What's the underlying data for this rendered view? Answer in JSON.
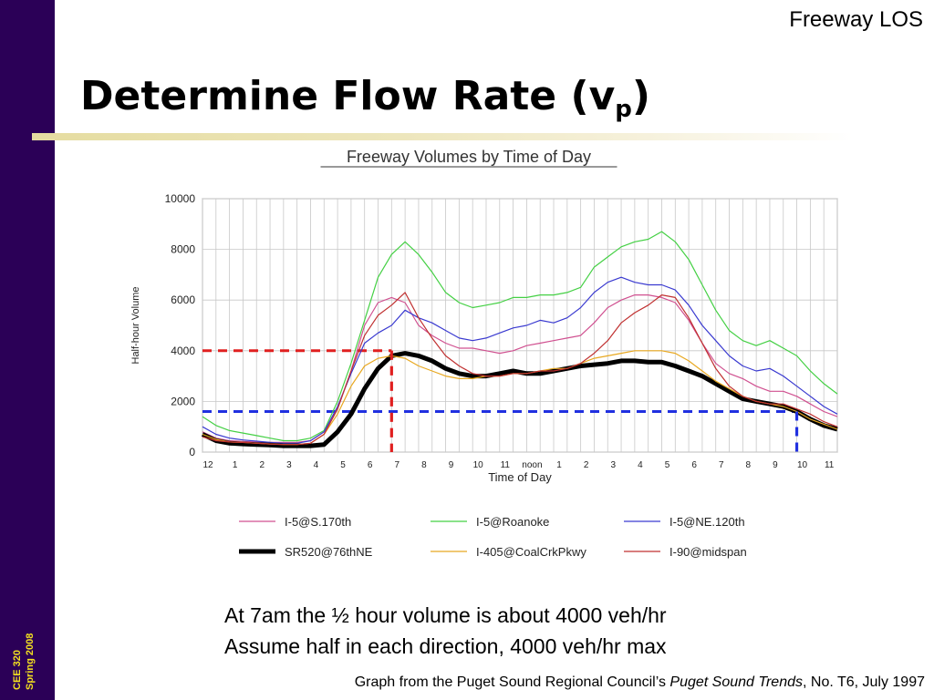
{
  "slide": {
    "section_label": "Freeway LOS",
    "title_main": "Determine Flow Rate (v",
    "title_sub": "p",
    "title_close": ")",
    "course": "CEE 320",
    "term": "Spring 2008",
    "notes": [
      "At 7am the ½ hour volume is about 4000 veh/hr",
      "Assume half in each direction, 4000 veh/hr max"
    ],
    "source": {
      "prefix": "Graph from the Puget Sound Regional Council’s ",
      "italic": "Puget Sound Trends",
      "suffix": ", No. T6, July 1997"
    }
  },
  "chart_data": {
    "type": "line",
    "title": "Freeway Volumes by Time of Day",
    "xlabel": "Time of Day",
    "ylabel": "Half-hour Volume",
    "ylim": [
      0,
      10000
    ],
    "xlim": [
      0,
      23.5
    ],
    "yticks": [
      0,
      2000,
      4000,
      6000,
      8000,
      10000
    ],
    "x_tick_labels": [
      "12",
      "1",
      "2",
      "3",
      "4",
      "5",
      "6",
      "7",
      "8",
      "9",
      "10",
      "11",
      "noon",
      "1",
      "2",
      "3",
      "4",
      "5",
      "6",
      "7",
      "8",
      "9",
      "10",
      "11"
    ],
    "grid": true,
    "legend_position": "bottom",
    "series": [
      {
        "name": "I-5@S.170th",
        "color": "#d05090",
        "width": 1.2,
        "x": [
          0,
          0.5,
          1,
          1.5,
          2,
          2.5,
          3,
          3.5,
          4,
          4.5,
          5,
          5.5,
          6,
          6.5,
          7,
          7.5,
          8,
          8.5,
          9,
          9.5,
          10,
          10.5,
          11,
          11.5,
          12,
          12.5,
          13,
          13.5,
          14,
          14.5,
          15,
          15.5,
          16,
          16.5,
          17,
          17.5,
          18,
          18.5,
          19,
          19.5,
          20,
          20.5,
          21,
          21.5,
          22,
          22.5,
          23,
          23.5
        ],
        "y": [
          800,
          550,
          450,
          420,
          400,
          380,
          380,
          380,
          450,
          800,
          1700,
          3200,
          5000,
          5900,
          6100,
          5900,
          5000,
          4600,
          4300,
          4100,
          4100,
          4000,
          3900,
          4000,
          4200,
          4300,
          4400,
          4500,
          4600,
          5100,
          5700,
          6000,
          6200,
          6200,
          6100,
          5900,
          5200,
          4300,
          3500,
          3100,
          2900,
          2600,
          2400,
          2400,
          2200,
          1900,
          1600,
          1400
        ]
      },
      {
        "name": "I-5@Roanoke",
        "color": "#44d044",
        "width": 1.2,
        "x": [
          0,
          0.5,
          1,
          1.5,
          2,
          2.5,
          3,
          3.5,
          4,
          4.5,
          5,
          5.5,
          6,
          6.5,
          7,
          7.5,
          8,
          8.5,
          9,
          9.5,
          10,
          10.5,
          11,
          11.5,
          12,
          12.5,
          13,
          13.5,
          14,
          14.5,
          15,
          15.5,
          16,
          16.5,
          17,
          17.5,
          18,
          18.5,
          19,
          19.5,
          20,
          20.5,
          21,
          21.5,
          22,
          22.5,
          23,
          23.5
        ],
        "y": [
          1400,
          1050,
          850,
          750,
          650,
          550,
          450,
          450,
          550,
          850,
          2000,
          3500,
          5200,
          6900,
          7800,
          8300,
          7800,
          7100,
          6300,
          5900,
          5700,
          5800,
          5900,
          6100,
          6100,
          6200,
          6200,
          6300,
          6500,
          7300,
          7700,
          8100,
          8300,
          8400,
          8700,
          8300,
          7600,
          6600,
          5600,
          4800,
          4400,
          4200,
          4400,
          4100,
          3800,
          3200,
          2700,
          2300
        ]
      },
      {
        "name": "I-5@NE.120th",
        "color": "#3a3ad0",
        "width": 1.2,
        "x": [
          0,
          0.5,
          1,
          1.5,
          2,
          2.5,
          3,
          3.5,
          4,
          4.5,
          5,
          5.5,
          6,
          6.5,
          7,
          7.5,
          8,
          8.5,
          9,
          9.5,
          10,
          10.5,
          11,
          11.5,
          12,
          12.5,
          13,
          13.5,
          14,
          14.5,
          15,
          15.5,
          16,
          16.5,
          17,
          17.5,
          18,
          18.5,
          19,
          19.5,
          20,
          20.5,
          21,
          21.5,
          22,
          22.5,
          23,
          23.5
        ],
        "y": [
          1000,
          700,
          550,
          480,
          430,
          380,
          350,
          350,
          450,
          800,
          1800,
          3100,
          4300,
          4700,
          5000,
          5600,
          5300,
          5100,
          4800,
          4500,
          4400,
          4500,
          4700,
          4900,
          5000,
          5200,
          5100,
          5300,
          5700,
          6300,
          6700,
          6900,
          6700,
          6600,
          6600,
          6400,
          5800,
          5000,
          4400,
          3800,
          3400,
          3200,
          3300,
          3000,
          2600,
          2200,
          1800,
          1500
        ]
      },
      {
        "name": "SR520@76thNE",
        "color": "#000000",
        "width": 5,
        "x": [
          0,
          0.5,
          1,
          1.5,
          2,
          2.5,
          3,
          3.5,
          4,
          4.5,
          5,
          5.5,
          6,
          6.5,
          7,
          7.5,
          8,
          8.5,
          9,
          9.5,
          10,
          10.5,
          11,
          11.5,
          12,
          12.5,
          13,
          13.5,
          14,
          14.5,
          15,
          15.5,
          16,
          16.5,
          17,
          17.5,
          18,
          18.5,
          19,
          19.5,
          20,
          20.5,
          21,
          21.5,
          22,
          22.5,
          23,
          23.5
        ],
        "y": [
          700,
          450,
          350,
          320,
          300,
          280,
          250,
          250,
          250,
          300,
          800,
          1500,
          2500,
          3300,
          3800,
          3900,
          3800,
          3600,
          3300,
          3100,
          3000,
          3000,
          3100,
          3200,
          3100,
          3100,
          3200,
          3300,
          3400,
          3450,
          3500,
          3600,
          3600,
          3550,
          3550,
          3400,
          3200,
          3000,
          2700,
          2400,
          2100,
          2000,
          1900,
          1800,
          1600,
          1300,
          1050,
          900
        ]
      },
      {
        "name": "I-405@CoalCrkPkwy",
        "color": "#e8a820",
        "width": 1.2,
        "x": [
          0,
          0.5,
          1,
          1.5,
          2,
          2.5,
          3,
          3.5,
          4,
          4.5,
          5,
          5.5,
          6,
          6.5,
          7,
          7.5,
          8,
          8.5,
          9,
          9.5,
          10,
          10.5,
          11,
          11.5,
          12,
          12.5,
          13,
          13.5,
          14,
          14.5,
          15,
          15.5,
          16,
          16.5,
          17,
          17.5,
          18,
          18.5,
          19,
          19.5,
          20,
          20.5,
          21,
          21.5,
          22,
          22.5,
          23,
          23.5
        ],
        "y": [
          700,
          500,
          400,
          380,
          350,
          320,
          300,
          300,
          350,
          700,
          1500,
          2600,
          3400,
          3700,
          3800,
          3700,
          3400,
          3200,
          3000,
          2900,
          2900,
          3000,
          3000,
          3100,
          3100,
          3200,
          3300,
          3300,
          3500,
          3700,
          3800,
          3900,
          4000,
          4000,
          4000,
          3900,
          3600,
          3200,
          2800,
          2500,
          2200,
          2000,
          1900,
          1800,
          1600,
          1300,
          1100,
          900
        ]
      },
      {
        "name": "I-90@midspan",
        "color": "#c03030",
        "width": 1.2,
        "x": [
          0,
          0.5,
          1,
          1.5,
          2,
          2.5,
          3,
          3.5,
          4,
          4.5,
          5,
          5.5,
          6,
          6.5,
          7,
          7.5,
          8,
          8.5,
          9,
          9.5,
          10,
          10.5,
          11,
          11.5,
          12,
          12.5,
          13,
          13.5,
          14,
          14.5,
          15,
          15.5,
          16,
          16.5,
          17,
          17.5,
          18,
          18.5,
          19,
          19.5,
          20,
          20.5,
          21,
          21.5,
          22,
          22.5,
          23,
          23.5
        ],
        "y": [
          600,
          450,
          400,
          380,
          350,
          320,
          300,
          300,
          350,
          700,
          1700,
          3200,
          4600,
          5400,
          5800,
          6300,
          5300,
          4500,
          3800,
          3400,
          3100,
          3000,
          3000,
          3100,
          3100,
          3200,
          3200,
          3300,
          3500,
          3900,
          4400,
          5100,
          5500,
          5800,
          6200,
          6100,
          5300,
          4300,
          3300,
          2600,
          2200,
          2000,
          1900,
          1900,
          1700,
          1500,
          1200,
          1000
        ]
      }
    ],
    "annotations": [
      {
        "label": "7am",
        "x": 7,
        "y": 4000,
        "color": "#e02020"
      },
      {
        "label": "10pm",
        "x": 22,
        "y": 1600,
        "color": "#2030e0"
      }
    ]
  }
}
